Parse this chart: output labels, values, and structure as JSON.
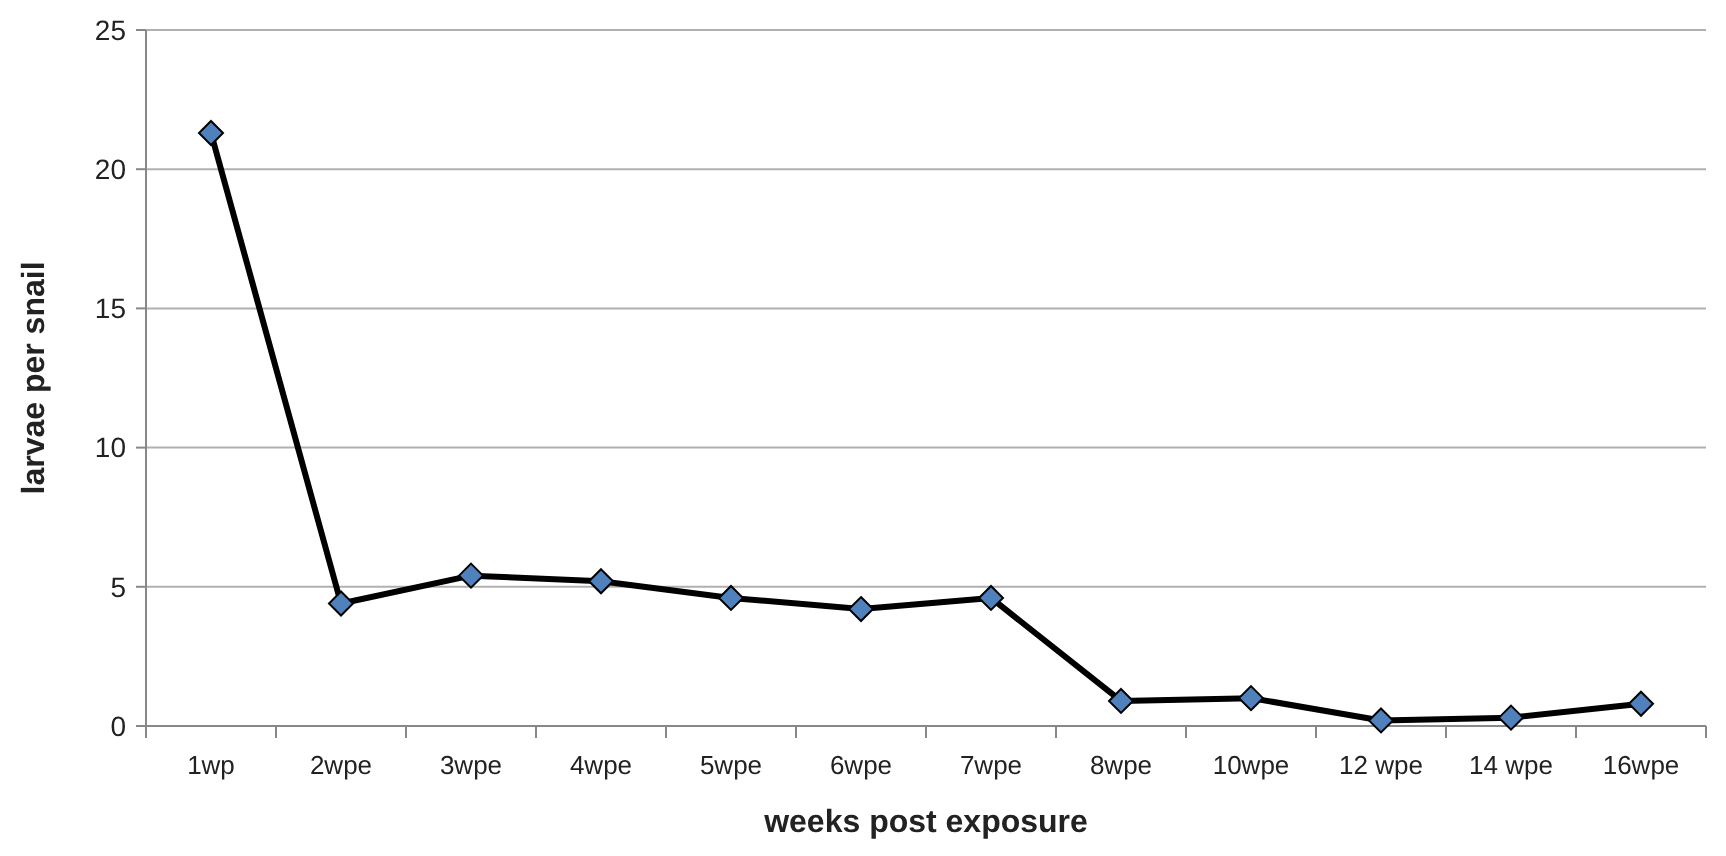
{
  "chart_data": {
    "type": "line",
    "xlabel": "weeks post exposure",
    "ylabel": "larvae per snail",
    "categories": [
      "1wp",
      "2wpe",
      "3wpe",
      "4wpe",
      "5wpe",
      "6wpe",
      "7wpe",
      "8wpe",
      "10wpe",
      "12 wpe",
      "14 wpe",
      "16wpe"
    ],
    "series": [
      {
        "color": "#4f81bd",
        "values": [
          21.3,
          4.4,
          5.4,
          5.2,
          4.6,
          4.2,
          4.6,
          0.9,
          1.0,
          0.2,
          0.3,
          0.8
        ]
      }
    ],
    "ylim": [
      0,
      25
    ],
    "yticks": [
      0,
      5,
      10,
      15,
      20,
      25
    ],
    "grid": "y",
    "marker": "diamond",
    "line_style": "solid"
  }
}
